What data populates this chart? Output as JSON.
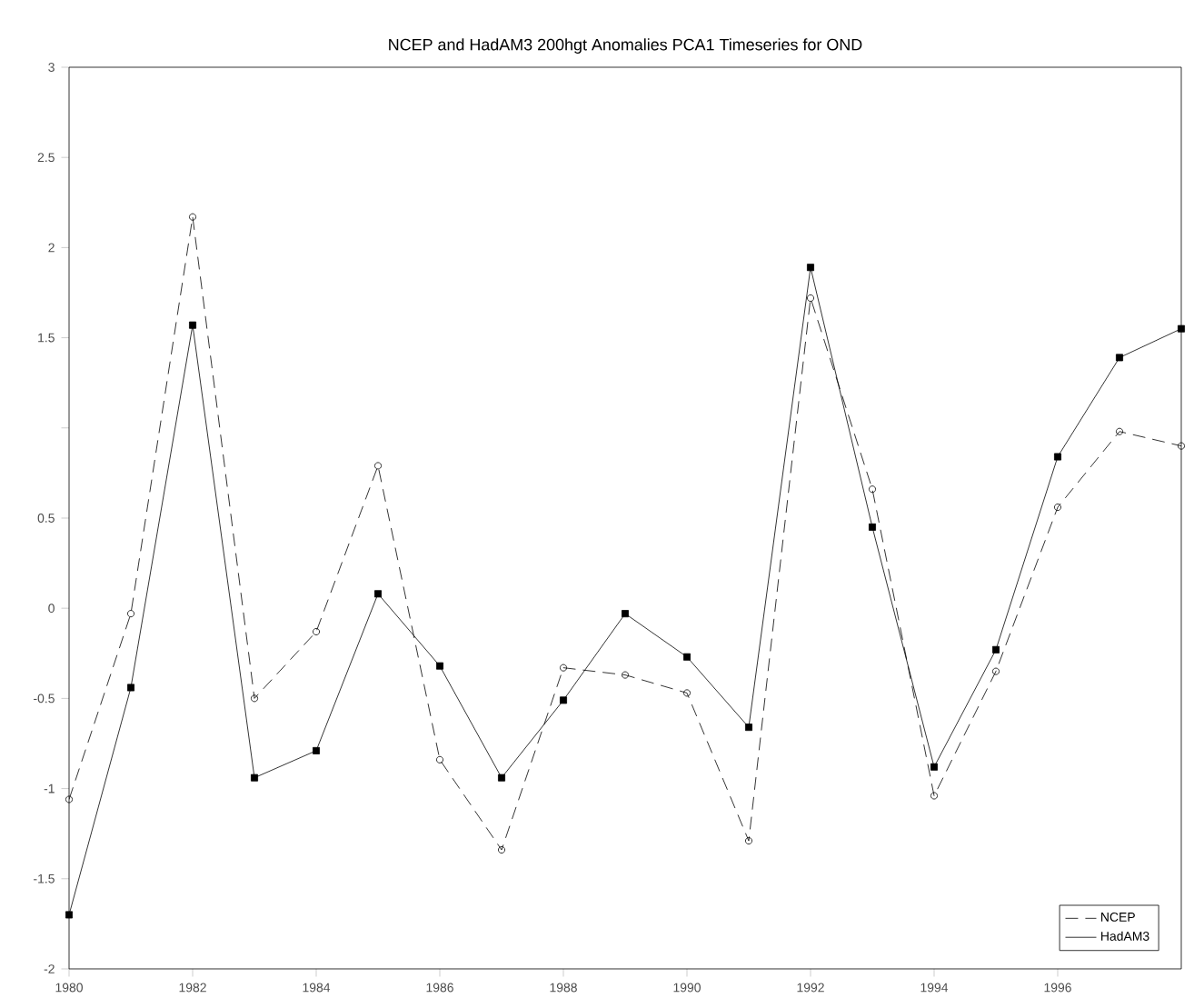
{
  "chart_data": {
    "type": "line",
    "title": "NCEP and HadAM3 200hgt Anomalies PCA1 Timeseries for OND",
    "x": [
      1980,
      1981,
      1982,
      1983,
      1984,
      1985,
      1986,
      1987,
      1988,
      1989,
      1990,
      1991,
      1992,
      1993,
      1994,
      1995,
      1996,
      1997,
      1998
    ],
    "series": [
      {
        "name": "NCEP",
        "color": "#000000",
        "marker": "circle",
        "line_style": "dashed",
        "values": [
          -1.06,
          -0.03,
          2.17,
          -0.5,
          -0.13,
          0.79,
          -0.84,
          -1.34,
          -0.33,
          -0.37,
          -0.47,
          -1.29,
          1.72,
          0.66,
          -1.04,
          -0.35,
          0.56,
          0.98,
          0.9
        ]
      },
      {
        "name": "HadAM3",
        "color": "#000000",
        "marker": "square",
        "line_style": "solid",
        "values": [
          -1.7,
          -0.44,
          1.57,
          -0.94,
          -0.79,
          0.08,
          -0.32,
          -0.94,
          -0.51,
          -0.03,
          -0.27,
          -0.66,
          1.89,
          0.45,
          -0.88,
          -0.23,
          0.84,
          1.39,
          1.55
        ]
      }
    ],
    "xlim": [
      1980,
      1998
    ],
    "xticks": [
      1980,
      1982,
      1984,
      1986,
      1988,
      1990,
      1992,
      1994,
      1996
    ],
    "ylim": [
      -2,
      3
    ],
    "yticks": [
      -2,
      -1.5,
      -1,
      -0.5,
      0,
      0.5,
      {
        "value": 1,
        "label": null
      },
      1.5,
      2,
      2.5,
      3
    ],
    "grid": false,
    "legend": "bottom right"
  }
}
